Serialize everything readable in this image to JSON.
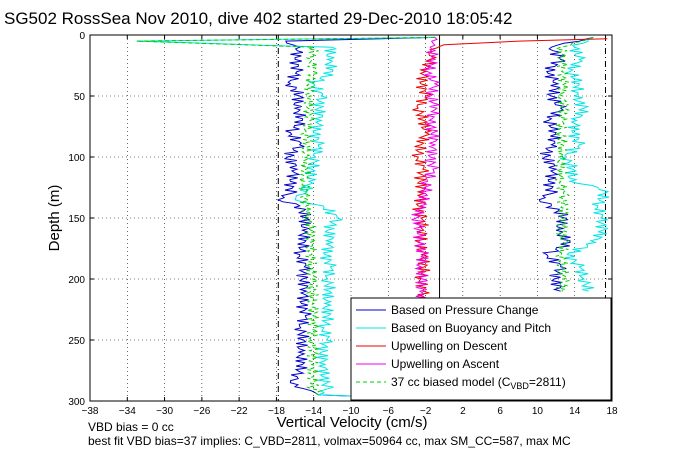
{
  "chart_data": {
    "type": "line",
    "title": "SG502 RossSea Nov 2010, dive 402 started 29-Dec-2010 18:05:42",
    "xlabel": "Vertical Velocity (cm/s)",
    "ylabel": "Depth (m)",
    "xlim": [
      -38,
      18
    ],
    "ylim": [
      0,
      300
    ],
    "y_reversed": true,
    "xticks": [
      -38,
      -34,
      -30,
      -26,
      -22,
      -18,
      -14,
      -10,
      -6,
      -2,
      2,
      6,
      10,
      14,
      18
    ],
    "yticks": [
      0,
      50,
      100,
      150,
      200,
      250,
      300
    ],
    "grid": true,
    "legend_position": "bottom-right",
    "reference_lines": [
      {
        "x": -17.8,
        "style": "dash-dot"
      },
      {
        "x": -0.5,
        "style": "solid"
      },
      {
        "x": 17.3,
        "style": "dash-dot"
      }
    ],
    "series": [
      {
        "name": "Based on Pressure Change",
        "color": "#0000cc",
        "segments": [
          {
            "depth": [
              2,
              5,
              10,
              20,
              30,
              40,
              50,
              60,
              70,
              80,
              90,
              100,
              110,
              120,
              130,
              135,
              140,
              150,
              160,
              170,
              180,
              190,
              200,
              210,
              220,
              230,
              240,
              250,
              260,
              270,
              280,
              285,
              290,
              295,
              298
            ],
            "velocity": [
              -1,
              -17,
              -15.5,
              -16,
              -15.8,
              -16.5,
              -15.5,
              -16,
              -15.2,
              -16.5,
              -15.5,
              -16.8,
              -15.8,
              -16.5,
              -16.5,
              -17.8,
              -15.5,
              -14.8,
              -15.2,
              -15,
              -15.5,
              -15,
              -15.2,
              -14.8,
              -15.3,
              -14.9,
              -15.4,
              -15.1,
              -15.6,
              -15.2,
              -15.8,
              -16.5,
              -15,
              -13.5,
              -3
            ]
          },
          {
            "depth": [
              2,
              10,
              20,
              30,
              40,
              50,
              60,
              70,
              80,
              90,
              100,
              110,
              120,
              130,
              135,
              140,
              150,
              160,
              170,
              180,
              190,
              200,
              210
            ],
            "velocity": [
              16,
              11.5,
              12.5,
              11,
              12.2,
              11.5,
              12.5,
              11.2,
              12,
              11.5,
              10.8,
              12,
              11.2,
              11.5,
              10.2,
              11.5,
              13,
              12,
              13.5,
              11,
              12.5,
              11.8,
              12.5
            ]
          }
        ]
      },
      {
        "name": "Based on Buoyancy and Pitch",
        "color": "#00e5e5",
        "segments": [
          {
            "depth": [
              2,
              5,
              10,
              20,
              30,
              40,
              50,
              60,
              70,
              80,
              90,
              100,
              110,
              120,
              130,
              135,
              140,
              150,
              160,
              170,
              180,
              190,
              200,
              210,
              220,
              230,
              240,
              250,
              260,
              270,
              280,
              290,
              295,
              298
            ],
            "velocity": [
              -1,
              -33,
              -12,
              -12.5,
              -12,
              -14,
              -13.2,
              -13.5,
              -13.2,
              -14,
              -13.5,
              -13.8,
              -14.2,
              -14.5,
              -15,
              -16,
              -13,
              -11.5,
              -12.5,
              -12,
              -12.8,
              -12.2,
              -12.5,
              -12.3,
              -12.8,
              -12.4,
              -12.9,
              -12.6,
              -13.2,
              -12.8,
              -13,
              -12.5,
              -13.5,
              -3
            ]
          },
          {
            "depth": [
              2,
              10,
              20,
              30,
              40,
              50,
              60,
              70,
              80,
              90,
              100,
              110,
              120,
              125,
              130,
              140,
              150,
              160,
              170,
              180,
              190,
              200,
              210
            ],
            "velocity": [
              16,
              14,
              14.5,
              13.5,
              14.5,
              14,
              15,
              14.2,
              13.8,
              14.5,
              13,
              13.8,
              13.5,
              16.5,
              17.2,
              16.5,
              16.8,
              17,
              16.2,
              13.2,
              14.5,
              15,
              15.5
            ]
          }
        ]
      },
      {
        "name": "Upwelling on Descent",
        "color": "#ee0000",
        "segments": [
          {
            "depth": [
              3,
              5,
              8,
              12,
              20,
              30,
              40,
              50,
              60,
              70,
              80,
              90,
              100,
              110,
              120,
              130,
              140,
              150,
              160,
              170,
              180,
              190,
              200,
              210,
              220
            ],
            "velocity": [
              17.5,
              8,
              0,
              -1.5,
              -1.5,
              -2,
              -2.5,
              -2,
              -2.8,
              -2.2,
              -2,
              -2.5,
              -2.8,
              -2.3,
              -2.6,
              -2.2,
              -2.8,
              -2.5,
              -2.2,
              -2.6,
              -2.4,
              -2.1,
              -2.5,
              -2.3,
              -2.4
            ]
          }
        ]
      },
      {
        "name": "Upwelling on Ascent",
        "color": "#ee00ee",
        "segments": [
          {
            "depth": [
              2,
              10,
              20,
              30,
              40,
              50,
              60,
              70,
              80,
              90,
              100,
              110,
              120,
              130,
              140,
              150,
              160,
              170,
              180,
              190,
              200,
              210,
              220
            ],
            "velocity": [
              -1,
              -1.5,
              -1,
              -1.8,
              -1,
              -1.5,
              -0.8,
              -1.6,
              -1.2,
              -1,
              -1.5,
              -1.2,
              -1.8,
              -2,
              -2.5,
              -3,
              -2.5,
              -2.8,
              -2.2,
              -2.5,
              -2.3,
              -2.6,
              -2.2
            ]
          }
        ]
      },
      {
        "name": "37 cc biased model (C_VBD=2811)",
        "color": "#00cc00",
        "dashed": true,
        "segments": [
          {
            "depth": [
              2,
              5,
              10,
              20,
              30,
              40,
              50,
              60,
              70,
              80,
              90,
              100,
              110,
              120,
              130,
              140,
              150,
              160,
              170,
              180,
              190,
              200,
              210,
              220,
              230,
              240,
              250,
              260,
              270,
              280,
              290,
              295
            ],
            "velocity": [
              -1,
              -33,
              -14,
              -14.2,
              -14,
              -14.5,
              -14.3,
              -14.6,
              -14.4,
              -14.8,
              -14.6,
              -15,
              -14.8,
              -15,
              -15,
              -14.8,
              -14.5,
              -14.3,
              -14.4,
              -14.2,
              -14.3,
              -14.1,
              -14.2,
              -14,
              -14.1,
              -14,
              -14.1,
              -14,
              -14.2,
              -14,
              -14.1,
              -13.5
            ]
          },
          {
            "depth": [
              2,
              10,
              20,
              30,
              40,
              50,
              60,
              70,
              80,
              90,
              100,
              110,
              120,
              130,
              140,
              150,
              160,
              170,
              180,
              190,
              200,
              210
            ],
            "velocity": [
              16,
              12.5,
              12.8,
              12.6,
              12.9,
              12.7,
              12.8,
              12.6,
              12.5,
              12.7,
              12.4,
              12.6,
              12.5,
              12.8,
              12.7,
              12.9,
              12.6,
              12.8,
              12.6,
              12.7,
              12.8,
              12.6
            ]
          }
        ]
      }
    ],
    "legend_entries": {
      "pressure": "Based on Pressure Change",
      "buoyancy": "Based on Buoyancy and Pitch",
      "descent": "Upwelling on Descent",
      "ascent": "Upwelling on Ascent",
      "model_prefix": "37 cc biased model (C",
      "model_sub": "VBD",
      "model_suffix": "=2811)"
    },
    "annotations": {
      "line1": "VBD bias = 0 cc",
      "line2": "best fit VBD bias=37 implies: C_VBD=2811, volmax=50964 cc, max SM_CC=587, max MC"
    }
  }
}
